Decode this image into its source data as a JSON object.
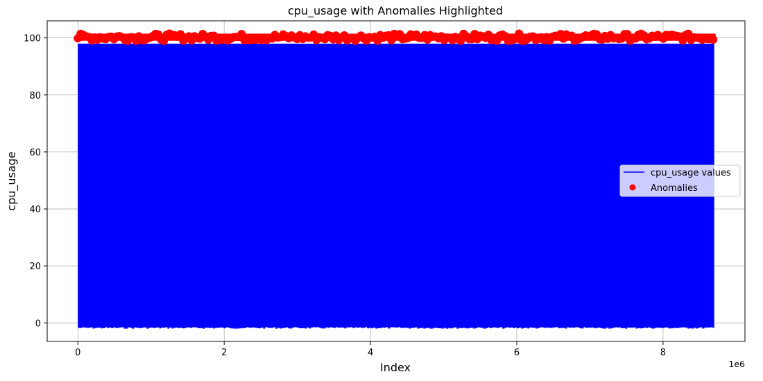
{
  "chart_data": {
    "type": "line",
    "title": "cpu_usage with Anomalies Highlighted",
    "xlabel": "Index",
    "ylabel": "cpu_usage",
    "x_offset_label": "1e6",
    "xlim": [
      -0.42,
      9.12
    ],
    "ylim": [
      -6.5,
      106
    ],
    "x_ticks": [
      0,
      2,
      4,
      6,
      8
    ],
    "x_tick_labels": [
      "0",
      "2",
      "4",
      "6",
      "8"
    ],
    "y_ticks": [
      0,
      20,
      40,
      60,
      80,
      100
    ],
    "y_tick_labels": [
      "0",
      "20",
      "40",
      "60",
      "80",
      "100"
    ],
    "grid": true,
    "legend_position": "center-right",
    "series": [
      {
        "name": "cpu_usage values",
        "kind": "line",
        "color": "#0000ff",
        "x_range": [
          0,
          8.7
        ],
        "y_min": -1.5,
        "y_max": 98
      },
      {
        "name": "Anomalies",
        "kind": "scatter",
        "color": "#ff0000",
        "x_range": [
          0,
          8.7
        ],
        "y_min": 99,
        "y_max": 101.5
      }
    ]
  }
}
